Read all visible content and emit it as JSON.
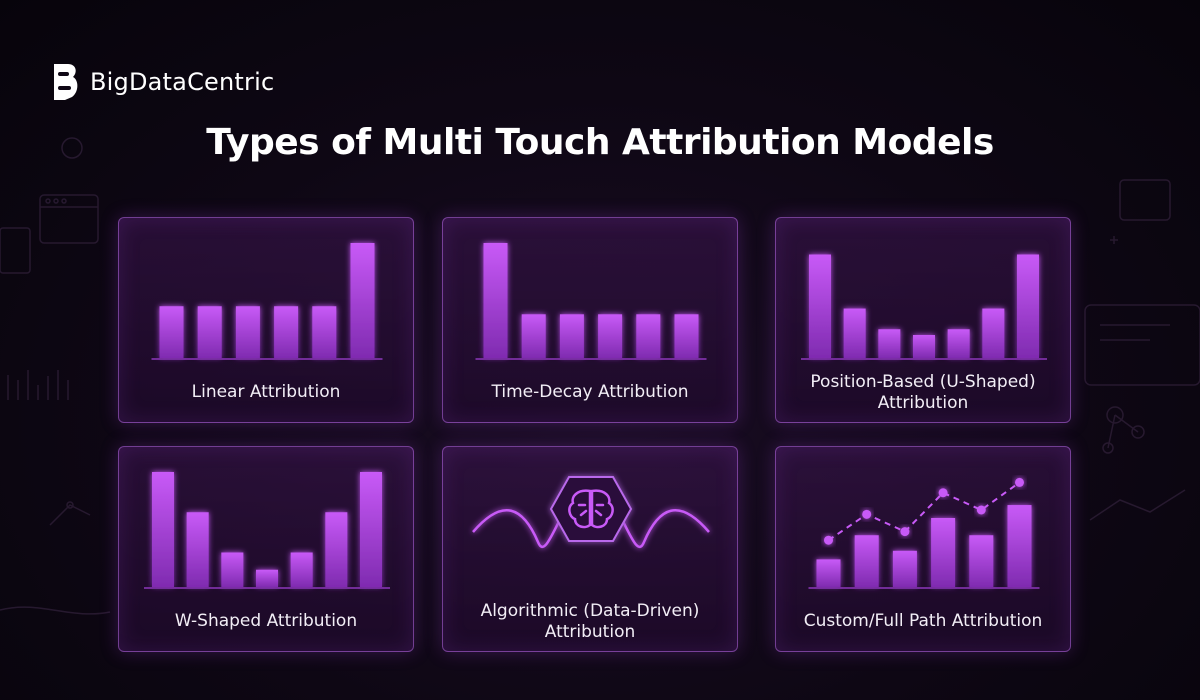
{
  "brand": {
    "name": "BigDataCentric"
  },
  "title": "Types of Multi Touch Attribution Models",
  "colors": {
    "bar_top": "#c85af7",
    "bar_bottom": "#7f2bb0",
    "border": "#b969eb",
    "glow": "#a944e0"
  },
  "cards": [
    {
      "label": "Linear Attribution",
      "visual": "bars",
      "bars": [
        0.45,
        0.45,
        0.45,
        0.45,
        0.45,
        1.0
      ]
    },
    {
      "label": "Time-Decay Attribution",
      "visual": "bars",
      "bars": [
        1.0,
        0.38,
        0.38,
        0.38,
        0.38,
        0.38
      ]
    },
    {
      "label": "Position-Based (U-Shaped) Attribution",
      "visual": "bars",
      "bars": [
        0.9,
        0.43,
        0.25,
        0.2,
        0.25,
        0.43,
        0.9
      ]
    },
    {
      "label": "W-Shaped Attribution",
      "visual": "bars",
      "bars": [
        1.0,
        0.65,
        0.3,
        0.15,
        0.3,
        0.65,
        1.0
      ]
    },
    {
      "label": "Algorithmic (Data-Driven) Attribution",
      "visual": "brain-wave",
      "icon": "brain-icon"
    },
    {
      "label": "Custom/Full Path Attribution",
      "visual": "bars-line",
      "bars": [
        0.32,
        0.6,
        0.42,
        0.8,
        0.6,
        0.95
      ],
      "trend": [
        0.45,
        0.75,
        0.55,
        1.0,
        0.8,
        1.12
      ]
    }
  ]
}
